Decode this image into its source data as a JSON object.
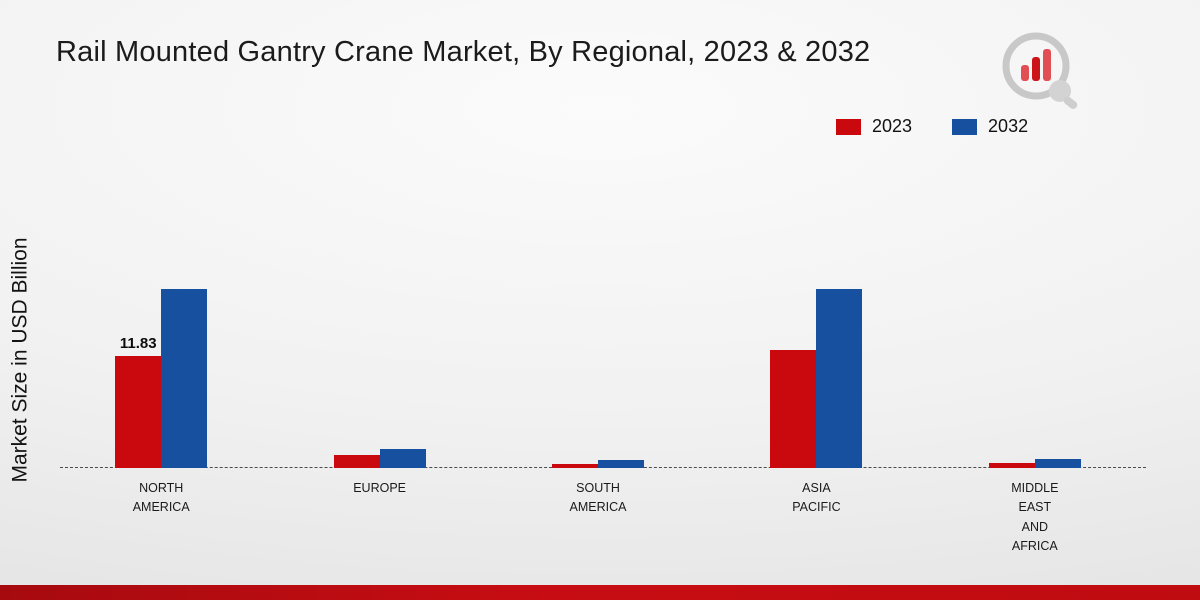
{
  "chart_data": {
    "type": "bar",
    "title": "Rail Mounted Gantry Crane Market, By Regional, 2023 & 2032",
    "xlabel": "",
    "ylabel": "Market Size in USD Billion",
    "categories": [
      "NORTH\nAMERICA",
      "EUROPE",
      "SOUTH\nAMERICA",
      "ASIA\nPACIFIC",
      "MIDDLE\nEAST\nAND\nAFRICA"
    ],
    "series": [
      {
        "name": "2023",
        "color": "#c9090e",
        "values": [
          11.83,
          1.4,
          0.45,
          12.4,
          0.55
        ]
      },
      {
        "name": "2032",
        "color": "#17509e",
        "values": [
          18.9,
          2.0,
          0.8,
          18.8,
          1.0
        ]
      }
    ],
    "ylim": [
      0,
      20
    ],
    "grid": false,
    "legend_position": "top-right",
    "annotations": [
      {
        "series": 0,
        "category": 0,
        "text": "11.83"
      }
    ]
  },
  "icons": {
    "logo": "bar-chart-magnifier-logo"
  },
  "style": {
    "footer_stripe_color": "#c00d12",
    "axis_line_color": "#4c4c4c"
  }
}
